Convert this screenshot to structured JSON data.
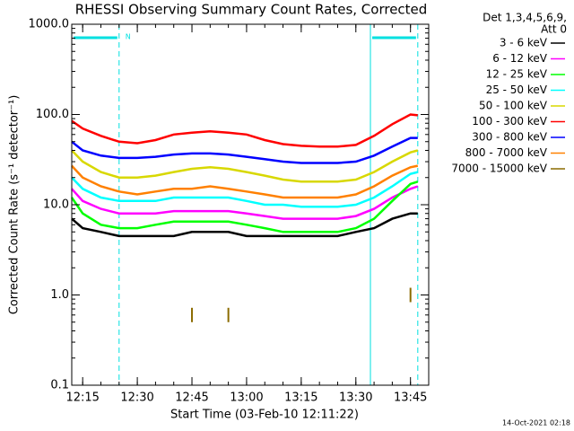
{
  "chart_data": {
    "type": "line",
    "title": "RHESSI Observing Summary Count Rates, Corrected",
    "xlabel": "Start Time (03-Feb-10 12:11:22)",
    "ylabel": "Corrected Count Rate (s⁻¹ detector⁻¹)",
    "footer": "14-Oct-2021 02:18",
    "legend_title": [
      "Det 1,3,4,5,6,9,",
      "Att 0"
    ],
    "legend": "outside-right",
    "log_y": true,
    "x": [
      "12:12",
      "12:15",
      "12:20",
      "12:25",
      "12:30",
      "12:35",
      "12:40",
      "12:45",
      "12:50",
      "12:55",
      "13:00",
      "13:05",
      "13:10",
      "13:15",
      "13:20",
      "13:25",
      "13:30",
      "13:35",
      "13:40",
      "13:45",
      "13:47"
    ],
    "xlim": [
      "12:12",
      "13:50"
    ],
    "xticks": [
      "12:15",
      "12:30",
      "12:45",
      "13:00",
      "13:15",
      "13:30",
      "13:45"
    ],
    "ylim": [
      0.1,
      1000
    ],
    "yticks": [
      0.1,
      {
        "value": 1,
        "label": "1.0"
      },
      {
        "value": 10,
        "label": "10.0"
      },
      {
        "value": 100,
        "label": "100.0"
      },
      {
        "value": 1000,
        "label": "1000.0"
      }
    ],
    "night": [
      {
        "start": "12:12",
        "end": "12:25",
        "label": "N"
      },
      {
        "start": "13:34",
        "end": "13:47"
      }
    ],
    "night_color": "#00e0e0",
    "series": [
      {
        "name": "3 - 6 keV",
        "color": "#000000",
        "values": [
          7,
          5.5,
          5,
          4.5,
          4.5,
          4.5,
          4.5,
          5,
          5,
          5,
          4.5,
          4.5,
          4.5,
          4.5,
          4.5,
          4.5,
          5,
          5.5,
          7,
          8,
          8
        ]
      },
      {
        "name": "6 - 12 keV",
        "color": "#ff00ff",
        "values": [
          15,
          11,
          9,
          8,
          8,
          8,
          8.5,
          8.5,
          8.5,
          8.5,
          8,
          7.5,
          7,
          7,
          7,
          7,
          7.5,
          9,
          12,
          15,
          16
        ]
      },
      {
        "name": "12 - 25 keV",
        "color": "#00ff00",
        "values": [
          12,
          8,
          6,
          5.5,
          5.5,
          6,
          6.5,
          6.5,
          6.5,
          6.5,
          6,
          5.5,
          5,
          5,
          5,
          5,
          5.5,
          7,
          11,
          17,
          18
        ]
      },
      {
        "name": "25 - 50 keV",
        "color": "#00ffff",
        "values": [
          20,
          15,
          12,
          11,
          11,
          11,
          12,
          12,
          12,
          12,
          11,
          10,
          10,
          9.5,
          9.5,
          9.5,
          10,
          12,
          16,
          22,
          23
        ]
      },
      {
        "name": "50 - 100 keV",
        "color": "#d8d800",
        "values": [
          40,
          30,
          23,
          20,
          20,
          21,
          23,
          25,
          26,
          25,
          23,
          21,
          19,
          18,
          18,
          18,
          19,
          23,
          30,
          38,
          40
        ]
      },
      {
        "name": "100 - 300 keV",
        "color": "#ff0000",
        "values": [
          85,
          70,
          58,
          50,
          48,
          52,
          60,
          63,
          65,
          63,
          60,
          52,
          47,
          45,
          44,
          44,
          46,
          58,
          78,
          100,
          98
        ]
      },
      {
        "name": "300 - 800 keV",
        "color": "#0000ff",
        "values": [
          50,
          40,
          35,
          33,
          33,
          34,
          36,
          37,
          37,
          36,
          34,
          32,
          30,
          29,
          29,
          29,
          30,
          35,
          44,
          55,
          55
        ]
      },
      {
        "name": "800 - 7000 keV",
        "color": "#ff8000",
        "values": [
          27,
          20,
          16,
          14,
          13,
          14,
          15,
          15,
          16,
          15,
          14,
          13,
          12,
          12,
          12,
          12,
          13,
          16,
          21,
          26,
          27
        ]
      },
      {
        "name": "7000 - 15000 keV",
        "color": "#8b6b00",
        "values": [
          null,
          null,
          null,
          null,
          null,
          null,
          null,
          0.6,
          null,
          0.6,
          null,
          null,
          null,
          null,
          null,
          null,
          null,
          null,
          null,
          1,
          null
        ]
      }
    ]
  }
}
